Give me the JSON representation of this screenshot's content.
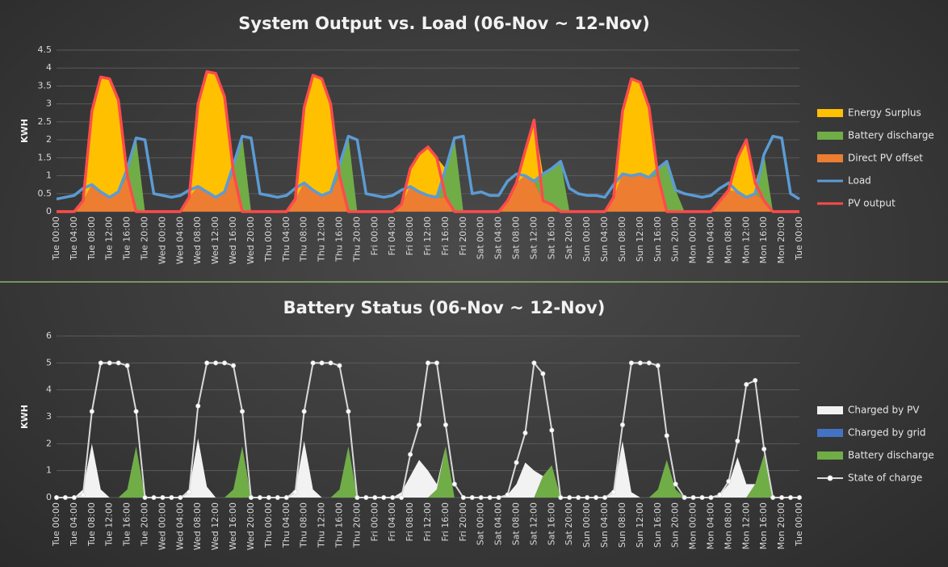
{
  "chart_data": [
    {
      "type": "area",
      "title": "System Output vs. Load (06-Nov ~ 12-Nov)",
      "y_label": "KWH",
      "categories": [
        "Tue 00:00",
        null,
        "Tue 04:00",
        null,
        "Tue 08:00",
        null,
        "Tue 12:00",
        null,
        "Tue 16:00",
        null,
        "Tue 20:00",
        null,
        "Wed 00:00",
        null,
        "Wed 04:00",
        null,
        "Wed 08:00",
        null,
        "Wed 12:00",
        null,
        "Wed 16:00",
        null,
        "Wed 20:00",
        null,
        "Thu 00:00",
        null,
        "Thu 04:00",
        null,
        "Thu 08:00",
        null,
        "Thu 12:00",
        null,
        "Thu 16:00",
        null,
        "Thu 20:00",
        null,
        "Fri 00:00",
        null,
        "Fri 04:00",
        null,
        "Fri 08:00",
        null,
        "Fri 12:00",
        null,
        "Fri 16:00",
        null,
        "Fri 20:00",
        null,
        "Sat 00:00",
        null,
        "Sat 04:00",
        null,
        "Sat 08:00",
        null,
        "Sat 12:00",
        null,
        "Sat 16:00",
        null,
        "Sat 20:00",
        null,
        "Sun 00:00",
        null,
        "Sun 04:00",
        null,
        "Sun 08:00",
        null,
        "Sun 12:00",
        null,
        "Sun 16:00",
        null,
        "Sun 20:00",
        null,
        "Mon 00:00",
        null,
        "Mon 04:00",
        null,
        "Mon 08:00",
        null,
        "Mon 12:00",
        null,
        "Mon 16:00",
        null,
        "Mon 20:00",
        null,
        "Tue 00:00"
      ],
      "series": [
        {
          "name": "Energy Surplus",
          "color": "#ffc000",
          "style": "area",
          "values": [
            0,
            0,
            0,
            0,
            2.05,
            3.2,
            3.3,
            2.55,
            0,
            0,
            0,
            0,
            0,
            0,
            0,
            0,
            2.3,
            3.35,
            3.45,
            2.65,
            0,
            0,
            0,
            0,
            0,
            0,
            0,
            0,
            2.1,
            3.2,
            3.25,
            2.45,
            0,
            0,
            0,
            0,
            0,
            0,
            0,
            0,
            0.5,
            1.05,
            1.35,
            1.1,
            0,
            0,
            0,
            0,
            0,
            0,
            0,
            0,
            0,
            0.7,
            1.7,
            0,
            0,
            0,
            0,
            0,
            0,
            0,
            0,
            0,
            1.75,
            2.7,
            2.55,
            1.95,
            0,
            0,
            0,
            0,
            0,
            0,
            0,
            0,
            0,
            0.95,
            1.6,
            0.3,
            0,
            0,
            0,
            0,
            0
          ]
        },
        {
          "name": "Battery discharge",
          "color": "#70ad47",
          "style": "area",
          "values": [
            0,
            0,
            0,
            0,
            0,
            0,
            0,
            0,
            0.2,
            2.05,
            0,
            0,
            0,
            0,
            0,
            0,
            0,
            0,
            0,
            0,
            0.2,
            2.1,
            0,
            0,
            0,
            0,
            0,
            0,
            0,
            0,
            0,
            0,
            0.3,
            2.1,
            0,
            0,
            0,
            0,
            0,
            0,
            0,
            0,
            0,
            0,
            0.8,
            2.05,
            0,
            0,
            0,
            0,
            0,
            0,
            0,
            0,
            0,
            0.75,
            1.0,
            1.4,
            0,
            0,
            0,
            0,
            0,
            0,
            0,
            0,
            0,
            0,
            0.2,
            1.4,
            0.6,
            0,
            0,
            0,
            0,
            0,
            0,
            0,
            0,
            0,
            1.3,
            0,
            0,
            0,
            0
          ]
        },
        {
          "name": "Direct PV offset",
          "color": "#ed7d31",
          "style": "area",
          "values": [
            0,
            0,
            0,
            0.3,
            0.75,
            0.55,
            0.4,
            0.55,
            1.0,
            0,
            0,
            0,
            0,
            0,
            0,
            0.4,
            0.7,
            0.55,
            0.4,
            0.55,
            1.1,
            0,
            0,
            0,
            0,
            0,
            0,
            0.35,
            0.8,
            0.6,
            0.45,
            0.55,
            1.0,
            0,
            0,
            0,
            0,
            0,
            0,
            0.2,
            0.7,
            0.55,
            0.45,
            0.4,
            0.4,
            0,
            0,
            0,
            0,
            0,
            0,
            0.3,
            0.8,
            1.0,
            0.85,
            0.3,
            0.2,
            0,
            0,
            0,
            0,
            0,
            0,
            0.4,
            1.05,
            1.0,
            1.05,
            0.95,
            1.0,
            0,
            0,
            0,
            0,
            0,
            0,
            0.3,
            0.6,
            0.55,
            0.4,
            0.5,
            0.3,
            0,
            0,
            0,
            0
          ]
        },
        {
          "name": "Load",
          "color": "#5b9bd5",
          "style": "line",
          "values": [
            0.35,
            0.4,
            0.45,
            0.65,
            0.75,
            0.55,
            0.4,
            0.55,
            1.2,
            2.05,
            2.0,
            0.5,
            0.45,
            0.4,
            0.45,
            0.6,
            0.7,
            0.55,
            0.4,
            0.55,
            1.3,
            2.1,
            2.05,
            0.5,
            0.45,
            0.4,
            0.45,
            0.65,
            0.8,
            0.6,
            0.45,
            0.55,
            1.3,
            2.1,
            2.0,
            0.5,
            0.45,
            0.4,
            0.45,
            0.6,
            0.7,
            0.55,
            0.45,
            0.4,
            1.2,
            2.05,
            2.1,
            0.5,
            0.55,
            0.45,
            0.45,
            0.85,
            1.05,
            1.0,
            0.85,
            1.05,
            1.2,
            1.4,
            0.65,
            0.5,
            0.45,
            0.45,
            0.4,
            0.75,
            1.05,
            1.0,
            1.05,
            0.95,
            1.2,
            1.4,
            0.6,
            0.5,
            0.45,
            0.4,
            0.45,
            0.65,
            0.8,
            0.55,
            0.4,
            0.5,
            1.6,
            2.1,
            2.05,
            0.5,
            0.35
          ]
        },
        {
          "name": "PV output",
          "color": "#ff4b4b",
          "style": "line",
          "values": [
            0,
            0,
            0,
            0.3,
            2.8,
            3.75,
            3.7,
            3.1,
            1.0,
            0,
            0,
            0,
            0,
            0,
            0,
            0.4,
            3.0,
            3.9,
            3.85,
            3.2,
            1.1,
            0,
            0,
            0,
            0,
            0,
            0,
            0.35,
            2.9,
            3.8,
            3.7,
            3.0,
            1.0,
            0,
            0,
            0,
            0,
            0,
            0,
            0.2,
            1.2,
            1.6,
            1.8,
            1.5,
            0.4,
            0,
            0,
            0,
            0,
            0,
            0,
            0.3,
            0.8,
            1.7,
            2.55,
            0.3,
            0.2,
            0,
            0,
            0,
            0,
            0,
            0,
            0.4,
            2.8,
            3.7,
            3.6,
            2.9,
            1.0,
            0,
            0,
            0,
            0,
            0,
            0,
            0.3,
            0.6,
            1.5,
            2.0,
            0.8,
            0.3,
            0,
            0,
            0,
            0
          ]
        }
      ],
      "ylim": [
        0,
        4.5
      ],
      "yticks": [
        0,
        0.5,
        1,
        1.5,
        2,
        2.5,
        3,
        3.5,
        4,
        4.5
      ],
      "grid": true,
      "legend": "right"
    },
    {
      "type": "area",
      "title": "Battery Status (06-Nov ~ 12-Nov)",
      "y_label": "KWH",
      "categories": [
        "Tue 00:00",
        null,
        "Tue 04:00",
        null,
        "Tue 08:00",
        null,
        "Tue 12:00",
        null,
        "Tue 16:00",
        null,
        "Tue 20:00",
        null,
        "Wed 00:00",
        null,
        "Wed 04:00",
        null,
        "Wed 08:00",
        null,
        "Wed 12:00",
        null,
        "Wed 16:00",
        null,
        "Wed 20:00",
        null,
        "Thu 00:00",
        null,
        "Thu 04:00",
        null,
        "Thu 08:00",
        null,
        "Thu 12:00",
        null,
        "Thu 16:00",
        null,
        "Thu 20:00",
        null,
        "Fri 00:00",
        null,
        "Fri 04:00",
        null,
        "Fri 08:00",
        null,
        "Fri 12:00",
        null,
        "Fri 16:00",
        null,
        "Fri 20:00",
        null,
        "Sat 00:00",
        null,
        "Sat 04:00",
        null,
        "Sat 08:00",
        null,
        "Sat 12:00",
        null,
        "Sat 16:00",
        null,
        "Sat 20:00",
        null,
        "Sun 00:00",
        null,
        "Sun 04:00",
        null,
        "Sun 08:00",
        null,
        "Sun 12:00",
        null,
        "Sun 16:00",
        null,
        "Sun 20:00",
        null,
        "Mon 00:00",
        null,
        "Mon 04:00",
        null,
        "Mon 08:00",
        null,
        "Mon 12:00",
        null,
        "Mon 16:00",
        null,
        "Mon 20:00",
        null,
        "Tue 00:00"
      ],
      "series": [
        {
          "name": "Charged by PV",
          "color": "#f2f2f2",
          "style": "area",
          "values": [
            0,
            0,
            0,
            0.3,
            2.0,
            0.3,
            0,
            0,
            0,
            0,
            0,
            0,
            0,
            0,
            0,
            0.3,
            2.2,
            0.4,
            0,
            0,
            0,
            0,
            0,
            0,
            0,
            0,
            0,
            0.3,
            2.1,
            0.3,
            0,
            0,
            0,
            0,
            0,
            0,
            0,
            0,
            0,
            0.2,
            0.8,
            1.4,
            1.0,
            0.2,
            0,
            0,
            0,
            0,
            0,
            0,
            0,
            0.1,
            0.5,
            1.3,
            1.0,
            0,
            0,
            0,
            0,
            0,
            0,
            0,
            0,
            0.3,
            2.1,
            0.2,
            0,
            0,
            0,
            0,
            0,
            0,
            0,
            0,
            0,
            0.1,
            0.5,
            1.5,
            0.5,
            0,
            0,
            0,
            0,
            0,
            0
          ]
        },
        {
          "name": "Charged by grid",
          "color": "#4472c4",
          "style": "area",
          "values": [
            0,
            0,
            0,
            0,
            0,
            0,
            0,
            0,
            0,
            0,
            0,
            0,
            0,
            0,
            0,
            0,
            0,
            0,
            0,
            0,
            0,
            0,
            0,
            0,
            0,
            0,
            0,
            0,
            0,
            0,
            0,
            0,
            0,
            0,
            0,
            0,
            0,
            0,
            0,
            0,
            0,
            0,
            0,
            0,
            0,
            0,
            0,
            0,
            0,
            0,
            0,
            0,
            0,
            0,
            0,
            0,
            0,
            0,
            0,
            0,
            0,
            0,
            0,
            0,
            0,
            0,
            0,
            0,
            0,
            0,
            0,
            0,
            0,
            0,
            0,
            0,
            0,
            0,
            0,
            0,
            0,
            0,
            0,
            0,
            0
          ]
        },
        {
          "name": "Battery discharge",
          "color": "#70ad47",
          "style": "area",
          "values": [
            0,
            0,
            0,
            0,
            0,
            0,
            0,
            0,
            0.3,
            1.9,
            0,
            0,
            0,
            0,
            0,
            0,
            0,
            0,
            0,
            0,
            0.3,
            1.9,
            0,
            0,
            0,
            0,
            0,
            0,
            0,
            0,
            0,
            0,
            0.3,
            1.9,
            0,
            0,
            0,
            0,
            0,
            0,
            0,
            0,
            0,
            0.3,
            1.9,
            0,
            0,
            0,
            0,
            0,
            0,
            0,
            0,
            0,
            0,
            0.8,
            1.2,
            0,
            0,
            0,
            0,
            0,
            0,
            0,
            0,
            0,
            0,
            0,
            0.3,
            1.4,
            0.3,
            0,
            0,
            0,
            0,
            0,
            0,
            0,
            0,
            0.5,
            1.6,
            0,
            0,
            0,
            0
          ]
        },
        {
          "name": "State of charge",
          "color": "#d9d9d9",
          "style": "line",
          "marker": true,
          "values": [
            0,
            0,
            0,
            0.1,
            3.2,
            5,
            5,
            5,
            4.9,
            3.2,
            0,
            0,
            0,
            0,
            0,
            0.2,
            3.4,
            5,
            5,
            5,
            4.9,
            3.2,
            0,
            0,
            0,
            0,
            0,
            0.2,
            3.2,
            5,
            5,
            5,
            4.9,
            3.2,
            0,
            0,
            0,
            0,
            0,
            0,
            1.6,
            2.7,
            5,
            5,
            2.7,
            0.5,
            0,
            0,
            0,
            0,
            0,
            0.1,
            1.3,
            2.4,
            5,
            4.6,
            2.5,
            0,
            0,
            0,
            0,
            0,
            0,
            0.2,
            2.7,
            5,
            5,
            5,
            4.9,
            2.3,
            0.5,
            0,
            0,
            0,
            0,
            0.1,
            0.6,
            2.1,
            4.2,
            4.35,
            1.8,
            0,
            0,
            0,
            0
          ]
        }
      ],
      "ylim": [
        0,
        6
      ],
      "yticks": [
        0,
        1,
        2,
        3,
        4,
        5,
        6
      ],
      "grid": true,
      "legend": "right"
    }
  ]
}
